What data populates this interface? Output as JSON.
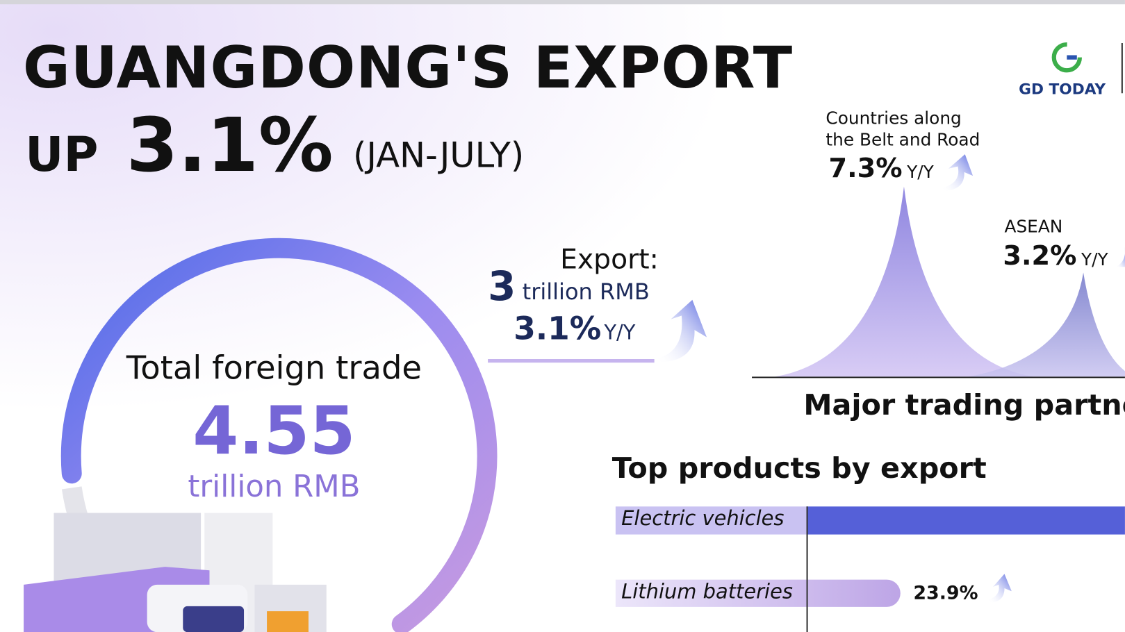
{
  "header": {
    "title": "GUANGDONG'S EXPORT",
    "up": "UP",
    "percent": "3.1%",
    "period": "(JAN-JULY)"
  },
  "logo": {
    "text": "GD TODAY"
  },
  "total_trade": {
    "label": "Total foreign trade",
    "value": "4.55",
    "unit": "trillion RMB"
  },
  "export": {
    "label": "Export:",
    "value": "3",
    "unit": "trillion RMB",
    "growth": "3.1%",
    "growth_unit": "Y/Y"
  },
  "partners": {
    "title": "Major trading partners",
    "items": [
      {
        "name_lines": [
          "Countries along",
          "the Belt and Road"
        ],
        "growth": "7.3%",
        "growth_unit": "Y/Y"
      },
      {
        "name_lines": [
          "ASEAN"
        ],
        "growth": "3.2%",
        "growth_unit": "Y/Y"
      }
    ]
  },
  "products": {
    "title": "Top products by export",
    "items": [
      {
        "name": "Electric vehicles"
      },
      {
        "name": "Lithium batteries",
        "growth": "23.9%"
      }
    ]
  }
}
